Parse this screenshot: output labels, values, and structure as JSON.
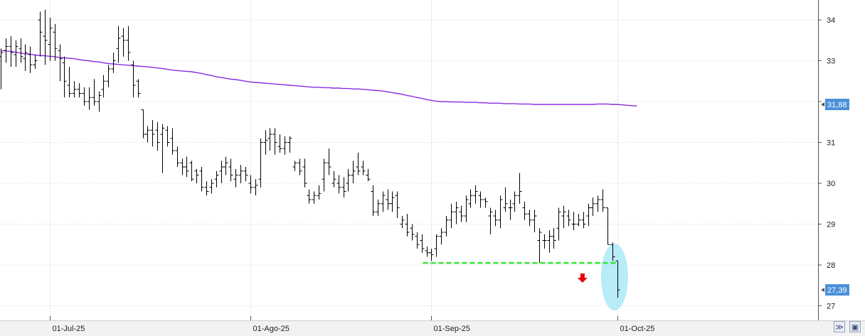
{
  "chart_data": {
    "type": "ohlc",
    "title": "",
    "xlabel": "",
    "ylabel": "",
    "ylim": [
      26.6,
      34.6
    ],
    "y_ticks": [
      "27",
      "28",
      "29",
      "30",
      "31",
      "32",
      "33",
      "34"
    ],
    "x_tick_labels": [
      "01-Jul-25",
      "01-Ago-25",
      "01-Sep-25",
      "01-Oct-25"
    ],
    "grid": true,
    "colors": {
      "bars": "#000000",
      "moving_average": "#8a2be2",
      "support_line": "#2ee82e",
      "signal_arrow": "#e60000",
      "highlight_ellipse": "#9fe6f5",
      "price_badge": "#4a90d9"
    },
    "price_badges": [
      "31,88",
      "27,39"
    ],
    "support_level": 28.05,
    "ohlc": [
      [
        33.1,
        33.3,
        32.3,
        33.2
      ],
      [
        33.25,
        33.55,
        32.95,
        33.35
      ],
      [
        33.35,
        33.6,
        32.85,
        33.2
      ],
      [
        33.15,
        33.5,
        32.85,
        33.35
      ],
      [
        33.3,
        33.55,
        32.95,
        33.1
      ],
      [
        33.05,
        33.4,
        32.75,
        33.2
      ],
      [
        33.15,
        33.35,
        32.7,
        32.9
      ],
      [
        32.9,
        33.15,
        32.8,
        33.0
      ],
      [
        34.0,
        34.2,
        33.1,
        33.7
      ],
      [
        33.6,
        34.25,
        32.9,
        33.5
      ],
      [
        33.4,
        34.05,
        33.0,
        33.8
      ],
      [
        33.7,
        33.9,
        33.0,
        33.3
      ],
      [
        33.25,
        33.4,
        32.5,
        33.05
      ],
      [
        32.95,
        33.1,
        32.1,
        32.5
      ],
      [
        32.4,
        32.85,
        32.1,
        32.2
      ],
      [
        32.2,
        32.5,
        32.1,
        32.3
      ],
      [
        32.3,
        32.45,
        32.1,
        32.2
      ],
      [
        32.2,
        32.35,
        31.9,
        32.0
      ],
      [
        32.0,
        32.35,
        31.8,
        32.1
      ],
      [
        32.1,
        32.55,
        31.9,
        32.0
      ],
      [
        32.0,
        32.25,
        31.75,
        32.15
      ],
      [
        32.3,
        32.65,
        32.1,
        32.5
      ],
      [
        32.5,
        32.9,
        32.35,
        32.8
      ],
      [
        32.8,
        33.2,
        32.7,
        33.0
      ],
      [
        33.3,
        33.85,
        32.95,
        33.55
      ],
      [
        33.6,
        33.8,
        33.1,
        33.5
      ],
      [
        33.5,
        33.85,
        33.0,
        33.2
      ],
      [
        32.9,
        33.0,
        32.1,
        32.4
      ],
      [
        32.5,
        32.55,
        32.1,
        32.2
      ],
      [
        31.8,
        31.8,
        31.1,
        31.2
      ],
      [
        31.2,
        31.4,
        31.0,
        31.3
      ],
      [
        31.3,
        31.55,
        30.9,
        31.2
      ],
      [
        31.3,
        31.5,
        30.8,
        31.0
      ],
      [
        31.2,
        31.45,
        30.25,
        31.35
      ],
      [
        31.3,
        31.4,
        30.9,
        31.0
      ],
      [
        31.1,
        31.35,
        30.7,
        30.8
      ],
      [
        30.8,
        30.9,
        30.4,
        30.5
      ],
      [
        30.5,
        30.6,
        30.2,
        30.4
      ],
      [
        30.4,
        30.65,
        30.15,
        30.3
      ],
      [
        30.5,
        30.55,
        30.05,
        30.1
      ],
      [
        30.3,
        30.35,
        30.0,
        30.2
      ],
      [
        30.3,
        30.4,
        29.8,
        29.9
      ],
      [
        29.9,
        30.05,
        29.7,
        29.8
      ],
      [
        29.9,
        30.1,
        29.75,
        30.0
      ],
      [
        30.1,
        30.3,
        29.9,
        30.2
      ],
      [
        30.3,
        30.55,
        30.0,
        30.4
      ],
      [
        30.4,
        30.65,
        30.2,
        30.5
      ],
      [
        30.4,
        30.6,
        30.05,
        30.2
      ],
      [
        30.1,
        30.35,
        29.9,
        30.2
      ],
      [
        30.2,
        30.45,
        30.0,
        30.3
      ],
      [
        30.3,
        30.4,
        30.05,
        30.2
      ],
      [
        30.0,
        30.2,
        29.75,
        29.9
      ],
      [
        29.9,
        30.1,
        29.7,
        29.95
      ],
      [
        30.1,
        31.1,
        29.9,
        31.0
      ],
      [
        31.0,
        31.3,
        30.7,
        31.05
      ],
      [
        31.1,
        31.35,
        30.8,
        31.2
      ],
      [
        31.2,
        31.35,
        30.7,
        31.0
      ],
      [
        30.9,
        31.2,
        30.75,
        30.85
      ],
      [
        30.85,
        31.15,
        30.7,
        31.0
      ],
      [
        31.0,
        31.15,
        30.75,
        31.1
      ],
      [
        30.4,
        30.55,
        30.3,
        30.5
      ],
      [
        30.5,
        30.6,
        30.2,
        30.3
      ],
      [
        30.4,
        30.6,
        29.9,
        30.0
      ],
      [
        29.7,
        29.85,
        29.5,
        29.6
      ],
      [
        29.6,
        29.8,
        29.5,
        29.7
      ],
      [
        29.7,
        29.95,
        29.6,
        29.75
      ],
      [
        30.1,
        30.6,
        29.8,
        30.5
      ],
      [
        30.5,
        30.85,
        30.2,
        30.4
      ],
      [
        30.0,
        30.3,
        29.9,
        30.1
      ],
      [
        30.0,
        30.2,
        29.75,
        29.9
      ],
      [
        29.9,
        30.15,
        29.65,
        29.8
      ],
      [
        30.0,
        30.35,
        29.8,
        30.2
      ],
      [
        30.2,
        30.55,
        30.0,
        30.3
      ],
      [
        30.4,
        30.75,
        30.2,
        30.3
      ],
      [
        30.4,
        30.55,
        30.2,
        30.3
      ],
      [
        30.2,
        30.35,
        30.05,
        30.1
      ],
      [
        29.8,
        29.95,
        29.2,
        29.3
      ],
      [
        29.3,
        29.6,
        29.2,
        29.5
      ],
      [
        29.5,
        29.8,
        29.3,
        29.7
      ],
      [
        29.6,
        29.85,
        29.35,
        29.5
      ],
      [
        29.5,
        29.8,
        29.3,
        29.65
      ],
      [
        29.7,
        29.8,
        29.15,
        29.4
      ],
      [
        29.0,
        29.2,
        28.9,
        29.1
      ],
      [
        29.0,
        29.25,
        28.7,
        28.8
      ],
      [
        28.9,
        29.0,
        28.6,
        28.75
      ],
      [
        28.7,
        28.8,
        28.4,
        28.5
      ],
      [
        28.6,
        28.75,
        28.3,
        28.4
      ],
      [
        28.35,
        28.45,
        28.2,
        28.3
      ],
      [
        28.3,
        28.4,
        28.1,
        28.25
      ],
      [
        28.4,
        28.75,
        28.2,
        28.7
      ],
      [
        28.7,
        28.9,
        28.5,
        28.8
      ],
      [
        28.8,
        29.2,
        28.7,
        29.1
      ],
      [
        29.1,
        29.5,
        28.9,
        29.3
      ],
      [
        29.3,
        29.55,
        29.0,
        29.4
      ],
      [
        29.3,
        29.45,
        29.05,
        29.2
      ],
      [
        29.2,
        29.7,
        29.05,
        29.6
      ],
      [
        29.5,
        29.85,
        29.4,
        29.7
      ],
      [
        29.7,
        29.95,
        29.5,
        29.8
      ],
      [
        29.7,
        29.8,
        29.4,
        29.6
      ],
      [
        29.6,
        29.65,
        29.4,
        29.55
      ],
      [
        29.2,
        29.4,
        28.75,
        29.3
      ],
      [
        29.2,
        29.35,
        28.95,
        29.1
      ],
      [
        29.1,
        29.7,
        28.9,
        29.6
      ],
      [
        29.4,
        29.9,
        29.3,
        29.5
      ],
      [
        29.4,
        29.6,
        29.1,
        29.4
      ],
      [
        29.5,
        29.8,
        29.3,
        29.7
      ],
      [
        29.7,
        30.25,
        29.5,
        29.8
      ],
      [
        29.4,
        29.55,
        29.1,
        29.25
      ],
      [
        29.25,
        29.35,
        28.95,
        29.1
      ],
      [
        29.1,
        29.35,
        28.8,
        29.2
      ],
      [
        28.6,
        28.9,
        28.05,
        28.8
      ],
      [
        28.6,
        28.75,
        28.4,
        28.6
      ],
      [
        28.6,
        28.85,
        28.3,
        28.7
      ],
      [
        28.7,
        28.9,
        28.4,
        28.6
      ],
      [
        28.9,
        29.4,
        28.6,
        29.3
      ],
      [
        29.2,
        29.45,
        28.9,
        29.3
      ],
      [
        29.2,
        29.35,
        28.95,
        29.1
      ],
      [
        29.0,
        29.3,
        28.85,
        29.0
      ],
      [
        29.0,
        29.25,
        28.95,
        29.1
      ],
      [
        29.1,
        29.3,
        28.9,
        29.0
      ],
      [
        29.2,
        29.5,
        28.95,
        29.4
      ],
      [
        29.4,
        29.65,
        29.2,
        29.5
      ],
      [
        29.5,
        29.7,
        29.3,
        29.6
      ],
      [
        29.6,
        29.85,
        29.3,
        29.4
      ],
      [
        29.4,
        29.4,
        28.5,
        28.5
      ],
      [
        28.5,
        28.55,
        28.1,
        28.2
      ],
      [
        28.1,
        28.1,
        27.2,
        27.39
      ]
    ],
    "moving_average": [
      33.25,
      33.24,
      33.23,
      33.21,
      33.19,
      33.17,
      33.16,
      33.14,
      33.13,
      33.12,
      33.11,
      33.1,
      33.08,
      33.07,
      33.06,
      33.05,
      33.03,
      33.01,
      33.0,
      32.98,
      32.97,
      32.95,
      32.93,
      32.92,
      32.91,
      32.9,
      32.89,
      32.88,
      32.87,
      32.86,
      32.85,
      32.84,
      32.82,
      32.81,
      32.79,
      32.77,
      32.76,
      32.75,
      32.74,
      32.73,
      32.71,
      32.69,
      32.66,
      32.64,
      32.61,
      32.59,
      32.57,
      32.55,
      32.54,
      32.52,
      32.5,
      32.48,
      32.47,
      32.46,
      32.45,
      32.44,
      32.43,
      32.42,
      32.41,
      32.4,
      32.39,
      32.38,
      32.37,
      32.36,
      32.35,
      32.35,
      32.34,
      32.34,
      32.33,
      32.33,
      32.32,
      32.32,
      32.31,
      32.31,
      32.3,
      32.29,
      32.28,
      32.27,
      32.26,
      32.24,
      32.22,
      32.2,
      32.18,
      32.15,
      32.13,
      32.1,
      32.08,
      32.05,
      32.03,
      32.01,
      32.0,
      32.0,
      31.99,
      31.99,
      31.99,
      31.98,
      31.98,
      31.98,
      31.97,
      31.97,
      31.96,
      31.96,
      31.96,
      31.95,
      31.95,
      31.95,
      31.94,
      31.94,
      31.94,
      31.93,
      31.93,
      31.93,
      31.93,
      31.93,
      31.93,
      31.93,
      31.93,
      31.93,
      31.93,
      31.93,
      31.93,
      31.93,
      31.94,
      31.94,
      31.94,
      31.93,
      31.93,
      31.92,
      31.91,
      31.9,
      31.89
    ]
  },
  "toolbar": {
    "expand_icon": "double-chevron-icon",
    "save_icon": "floppy-disk-icon"
  }
}
